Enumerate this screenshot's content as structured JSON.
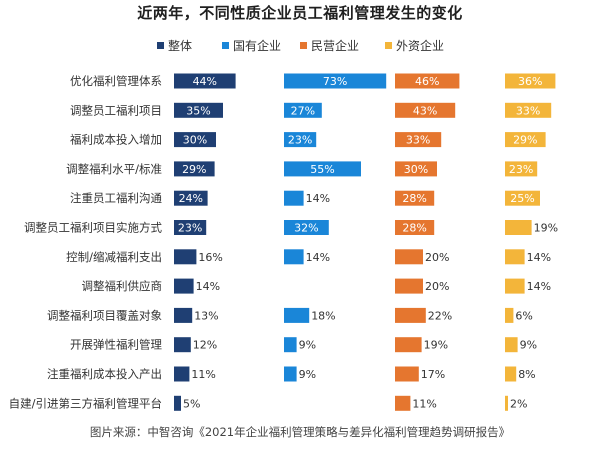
{
  "chart_data": {
    "type": "bar",
    "title": "近两年，不同性质企业员工福利管理发生的变化",
    "source": "图片来源：中智咨询《2021年企业福利管理策略与差异化福利管理趋势调研报告》",
    "legend_position": "top",
    "grid": false,
    "categories": [
      "优化福利管理体系",
      "调整员工福利项目",
      "福利成本投入增加",
      "调整福利水平/标准",
      "注重员工福利沟通",
      "调整员工福利项目实施方式",
      "控制/缩减福利支出",
      "调整福利供应商",
      "调整福利项目覆盖对象",
      "开展弹性福利管理",
      "注重福利成本投入产出",
      "自建/引进第三方福利管理平台"
    ],
    "series": [
      {
        "name": "整体",
        "color": "#1f3f73",
        "values": [
          44,
          35,
          30,
          29,
          24,
          23,
          16,
          14,
          13,
          12,
          11,
          5
        ],
        "labels": [
          "44%",
          "35%",
          "30%",
          "29%",
          "24%",
          "23%",
          "16%",
          "14%",
          "13%",
          "12%",
          "11%",
          "5%"
        ]
      },
      {
        "name": "国有企业",
        "color": "#1a86d8",
        "values": [
          73,
          27,
          23,
          55,
          14,
          32,
          14,
          null,
          18,
          9,
          9,
          null
        ],
        "labels": [
          "73%",
          "27%",
          "23%",
          "55%",
          "14%",
          "32%",
          "14%",
          "",
          "18%",
          "9%",
          "9%",
          ""
        ]
      },
      {
        "name": "民营企业",
        "color": "#e5762f",
        "values": [
          46,
          43,
          33,
          30,
          28,
          28,
          20,
          20,
          22,
          19,
          17,
          11
        ],
        "labels": [
          "46%",
          "43%",
          "33%",
          "30%",
          "28%",
          "28%",
          "20%",
          "20%",
          "22%",
          "19%",
          "17%",
          "11%"
        ]
      },
      {
        "name": "外资企业",
        "color": "#f3b53a",
        "values": [
          36,
          33,
          29,
          23,
          25,
          19,
          14,
          14,
          6,
          9,
          8,
          2
        ],
        "labels": [
          "36%",
          "33%",
          "29%",
          "23%",
          "25%",
          "19%",
          "14%",
          "14%",
          "6%",
          "9%",
          "8%",
          "2%"
        ]
      }
    ]
  }
}
